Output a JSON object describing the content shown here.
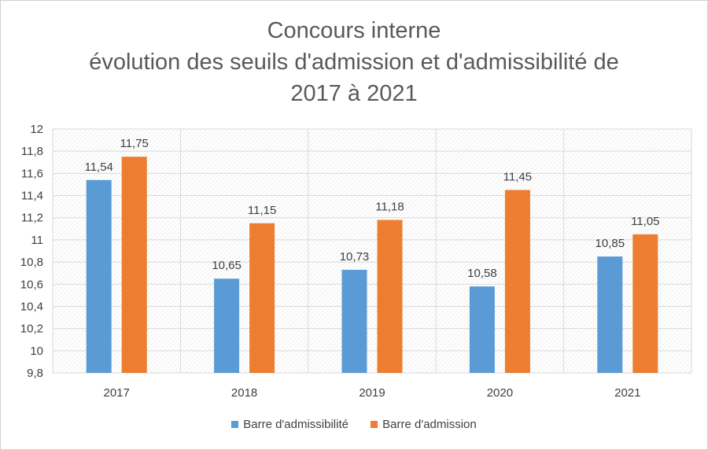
{
  "chart_data": {
    "type": "bar",
    "title_lines": [
      "Concours interne",
      "évolution des seuils d'admission et d'admissibilité de",
      "2017 à 2021"
    ],
    "categories": [
      "2017",
      "2018",
      "2019",
      "2020",
      "2021"
    ],
    "series": [
      {
        "name": "Barre d'admissibilité",
        "color": "#5B9BD5",
        "values": [
          11.54,
          10.65,
          10.73,
          10.58,
          10.85
        ],
        "labels": [
          "11,54",
          "10,65",
          "10,73",
          "10,58",
          "10,85"
        ]
      },
      {
        "name": "Barre d'admission",
        "color": "#ED7D31",
        "values": [
          11.75,
          11.15,
          11.18,
          11.45,
          11.05
        ],
        "labels": [
          "11,75",
          "11,15",
          "11,18",
          "11,45",
          "11,05"
        ]
      }
    ],
    "ylim": [
      9.8,
      12
    ],
    "y_ticks": [
      9.8,
      10,
      10.2,
      10.4,
      10.6,
      10.8,
      11,
      11.2,
      11.4,
      11.6,
      11.8,
      12
    ],
    "y_tick_labels": [
      "9,8",
      "10",
      "10,2",
      "10,4",
      "10,6",
      "10,8",
      "11",
      "11,2",
      "11,4",
      "11,6",
      "11,8",
      "12"
    ],
    "grid": true,
    "legend_position": "bottom"
  }
}
